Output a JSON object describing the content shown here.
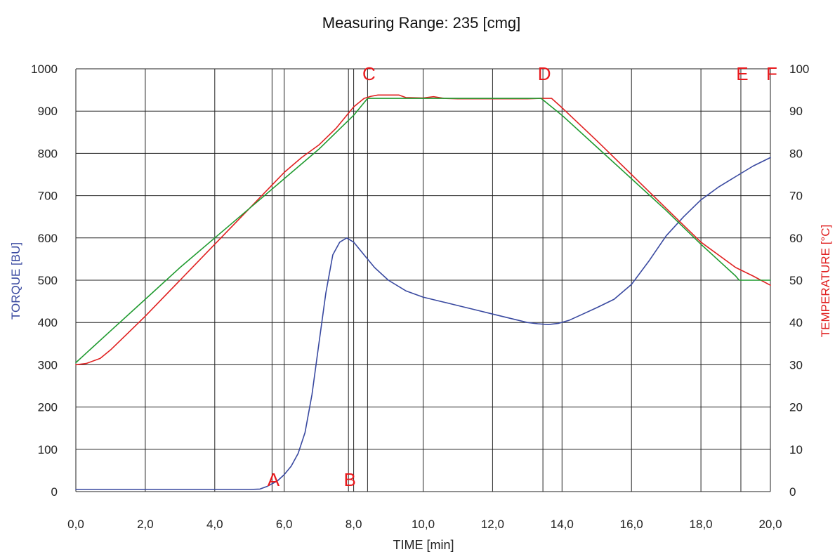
{
  "chart_data": {
    "type": "line",
    "title": "Measuring Range: 235 [cmg]",
    "xlabel": "TIME [min]",
    "ylabel_left": "TORQUE [BU]",
    "ylabel_right": "TEMPERATURE [°C]",
    "xlim": [
      0,
      20
    ],
    "ylim_left": [
      0,
      1000
    ],
    "ylim_right": [
      0,
      100
    ],
    "grid": true,
    "x_ticks": [
      "0,0",
      "2,0",
      "4,0",
      "6,0",
      "8,0",
      "10,0",
      "12,0",
      "14,0",
      "16,0",
      "18,0",
      "20,0"
    ],
    "y_left_ticks": [
      "0",
      "100",
      "200",
      "300",
      "400",
      "500",
      "600",
      "700",
      "800",
      "900",
      "1000"
    ],
    "y_right_ticks": [
      "0",
      "10",
      "20",
      "30",
      "40",
      "50",
      "60",
      "70",
      "80",
      "90",
      "100"
    ],
    "colors": {
      "torque": "#3949a0",
      "temperature_measured": "#e02020",
      "temperature_set": "#1f9a2f",
      "markers": "#e8191c",
      "grid": "#222222",
      "axis_left_label": "#3949a0",
      "axis_right_label": "#e02020"
    },
    "markers": [
      {
        "label": "A",
        "x": 5.65,
        "label_pos": "bottom"
      },
      {
        "label": "B",
        "x": 7.85,
        "label_pos": "bottom"
      },
      {
        "label": "C",
        "x": 8.4,
        "label_pos": "top"
      },
      {
        "label": "D",
        "x": 13.45,
        "label_pos": "top"
      },
      {
        "label": "E",
        "x": 19.15,
        "label_pos": "top"
      },
      {
        "label": "F",
        "x": 20.0,
        "label_pos": "top"
      }
    ],
    "series": [
      {
        "axis": "left",
        "color_key": "torque",
        "x": [
          0,
          1,
          2,
          3,
          4,
          5,
          5.3,
          5.5,
          5.8,
          6.0,
          6.2,
          6.4,
          6.6,
          6.8,
          7.0,
          7.2,
          7.4,
          7.6,
          7.8,
          8.0,
          8.3,
          8.6,
          9.0,
          9.5,
          10.0,
          10.5,
          11.0,
          11.5,
          12.0,
          12.5,
          13.0,
          13.3,
          13.6,
          13.9,
          14.2,
          14.6,
          15.0,
          15.5,
          16.0,
          16.5,
          17.0,
          17.5,
          18.0,
          18.5,
          19.0,
          19.5,
          20.0
        ],
        "y": [
          5,
          5,
          5,
          5,
          5,
          5,
          6,
          12,
          25,
          40,
          60,
          90,
          140,
          230,
          350,
          470,
          560,
          590,
          600,
          590,
          560,
          530,
          500,
          475,
          460,
          450,
          440,
          430,
          420,
          410,
          400,
          397,
          395,
          398,
          405,
          420,
          435,
          455,
          490,
          545,
          605,
          650,
          690,
          720,
          745,
          770,
          790
        ]
      },
      {
        "axis": "right",
        "color_key": "temperature_measured",
        "x": [
          0,
          0.3,
          0.7,
          1.0,
          1.5,
          2.0,
          3.0,
          4.0,
          5.0,
          6.0,
          6.5,
          7.0,
          7.5,
          8.0,
          8.3,
          8.5,
          8.7,
          9.0,
          9.3,
          9.5,
          10.0,
          10.3,
          10.6,
          11.0,
          11.5,
          12.0,
          12.5,
          13.0,
          13.4,
          13.7,
          14.0,
          15.0,
          16.0,
          17.0,
          18.0,
          19.0,
          19.5,
          20.0
        ],
        "y": [
          30,
          30.3,
          31.5,
          33.5,
          37.5,
          41.5,
          50,
          58.5,
          67,
          75.5,
          79,
          82,
          86,
          91,
          93,
          93.5,
          93.8,
          93.8,
          93.8,
          93.2,
          93.1,
          93.4,
          93,
          92.9,
          92.9,
          92.9,
          92.9,
          92.9,
          93,
          93,
          90.8,
          83,
          75,
          67,
          59,
          53,
          51,
          48.8
        ]
      },
      {
        "axis": "right",
        "color_key": "temperature_set",
        "x": [
          0,
          1,
          2,
          3,
          4,
          5,
          6,
          7,
          8,
          8.4,
          13.4,
          14,
          15,
          16,
          17,
          18,
          19,
          19.1,
          20
        ],
        "y": [
          30.5,
          38,
          45.5,
          53,
          60,
          67,
          74,
          81,
          89,
          93,
          93,
          89,
          81.5,
          74,
          66.5,
          58.5,
          51,
          50,
          50
        ]
      }
    ]
  }
}
